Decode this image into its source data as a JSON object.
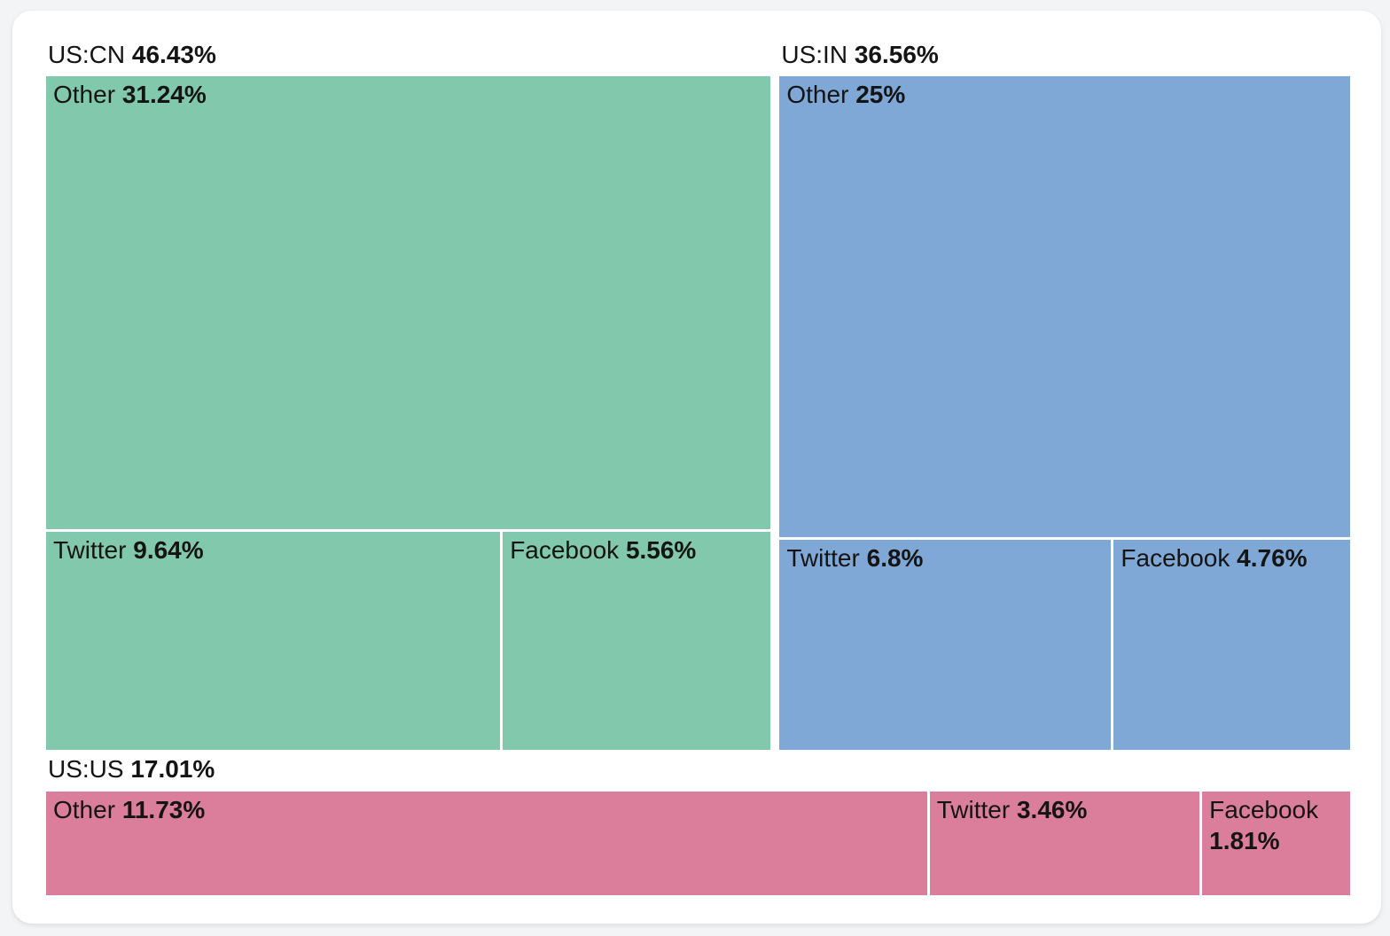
{
  "chart_data": {
    "type": "treemap",
    "title": "",
    "unit": "percent",
    "legend": "none",
    "groups": [
      {
        "label": "US:CN",
        "pct": "46.43%",
        "value": 46.43,
        "color": "#82c8ac",
        "layout": "stacked",
        "children": [
          {
            "label": "Other",
            "pct": "31.24%",
            "value": 31.24
          },
          {
            "label": "Twitter",
            "pct": "9.64%",
            "value": 9.64
          },
          {
            "label": "Facebook",
            "pct": "5.56%",
            "value": 5.56
          }
        ]
      },
      {
        "label": "US:IN",
        "pct": "36.56%",
        "value": 36.56,
        "color": "#7fa8d6",
        "layout": "stacked",
        "children": [
          {
            "label": "Other",
            "pct": "25%",
            "value": 25
          },
          {
            "label": "Twitter",
            "pct": "6.8%",
            "value": 6.8
          },
          {
            "label": "Facebook",
            "pct": "4.76%",
            "value": 4.76
          }
        ]
      },
      {
        "label": "US:US",
        "pct": "17.01%",
        "value": 17.01,
        "color": "#db7e9c",
        "layout": "row",
        "children": [
          {
            "label": "Other",
            "pct": "11.73%",
            "value": 11.73
          },
          {
            "label": "Twitter",
            "pct": "3.46%",
            "value": 3.46
          },
          {
            "label": "Facebook",
            "pct": "1.81%",
            "value": 1.81
          }
        ]
      }
    ]
  }
}
